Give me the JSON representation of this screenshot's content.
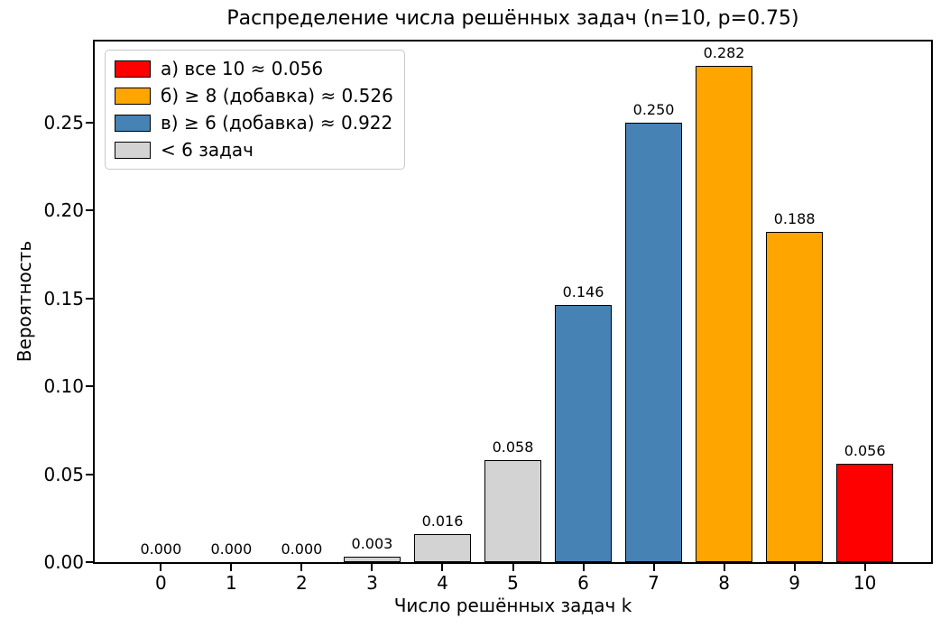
{
  "chart_data": {
    "type": "bar",
    "title": "Распределение числа решённых задач (n=10, p=0.75)",
    "xlabel": "Число решённых задач k",
    "ylabel": "Вероятность",
    "categories": [
      "0",
      "1",
      "2",
      "3",
      "4",
      "5",
      "6",
      "7",
      "8",
      "9",
      "10"
    ],
    "values": [
      0.0,
      0.0,
      0.0,
      0.003,
      0.016,
      0.058,
      0.146,
      0.25,
      0.282,
      0.188,
      0.056
    ],
    "bar_labels": [
      "0.000",
      "0.000",
      "0.000",
      "0.003",
      "0.016",
      "0.058",
      "0.146",
      "0.250",
      "0.282",
      "0.188",
      "0.056"
    ],
    "bar_colors": [
      "#d3d3d3",
      "#d3d3d3",
      "#d3d3d3",
      "#d3d3d3",
      "#d3d3d3",
      "#d3d3d3",
      "#4682b4",
      "#4682b4",
      "#ffa500",
      "#ffa500",
      "#ff0000"
    ],
    "bar_edge_color": "#000000",
    "ylim": [
      0,
      0.296
    ],
    "yticks": [
      "0.00",
      "0.05",
      "0.10",
      "0.15",
      "0.20",
      "0.25"
    ],
    "ytick_values": [
      0.0,
      0.05,
      0.1,
      0.15,
      0.2,
      0.25
    ],
    "grid": false,
    "legend": {
      "position": "upper-left",
      "entries": [
        {
          "label": "а) все 10 ≈ 0.056",
          "color": "#ff0000"
        },
        {
          "label": "б) ≥ 8 (добавка) ≈ 0.526",
          "color": "#ffa500"
        },
        {
          "label": "в) ≥ 6 (добавка) ≈ 0.922",
          "color": "#4682b4"
        },
        {
          "label": "< 6 задач",
          "color": "#d3d3d3"
        }
      ]
    }
  }
}
